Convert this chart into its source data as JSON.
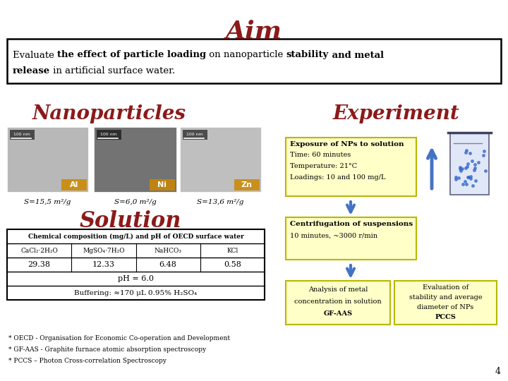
{
  "title": "Aim",
  "title_color": "#8B1A1A",
  "title_fontsize": 26,
  "aim_parts_line1": [
    [
      "Evaluate ",
      false
    ],
    [
      "the effect of particle loading",
      true
    ],
    [
      " on nanoparticle ",
      false
    ],
    [
      "stability",
      true
    ],
    [
      " and metal",
      true
    ]
  ],
  "aim_parts_line2": [
    [
      "release",
      true
    ],
    [
      " in artificial surface water.",
      false
    ]
  ],
  "nanoparticles_label": "Nanoparticles",
  "experiment_label": "Experiment",
  "section_label_color": "#8B1A1A",
  "section_label_fontsize": 20,
  "np_labels": [
    "Al",
    "Ni",
    "Zn"
  ],
  "np_sa": [
    "S=15,5 m²/g",
    "S=6,0 m²/g",
    "S=13,6 m²/g"
  ],
  "np_grays": [
    0.72,
    0.45,
    0.75
  ],
  "solution_label": "Solution",
  "solution_color": "#8B1A1A",
  "solution_fontsize": 22,
  "exposure_title": "Exposure of NPs to solution",
  "exposure_details": [
    "Time: 60 minutes",
    "Temperature: 21°C",
    "Loadings: 10 and 100 mg/L"
  ],
  "centrifugation_title": "Centrifugation of suspensions",
  "centrifugation_details": "10 minutes, ~3000 r/min",
  "table_title": "Chemical composition (mg/L) and pH of OECD surface water",
  "table_headers": [
    "CaCl₂·2H₂O",
    "MgSO₄·7H₂O",
    "NaHCO₃",
    "KCl"
  ],
  "table_values": [
    "29.38",
    "12.33",
    "6.48",
    "0.58"
  ],
  "table_ph": "pH = 6.0",
  "table_buffering": "Buffering: ≈170 μL 0.95% H₂SO₄",
  "analysis_box_text": [
    "Analysis of metal",
    "concentration in solution",
    "GF-AAS"
  ],
  "evaluation_box_text": [
    "Evaluation of",
    "stability and average",
    "diameter of NPs",
    "PCCS"
  ],
  "footnotes": [
    "* OECD - Organisation for Economic Co-operation and Development",
    "* GF-AAS - Graphite furnace atomic absorption spectroscopy",
    "* PCCS – Photon Cross-correlation Spectroscopy"
  ],
  "page_number": "4",
  "box_bg_yellow": "#FFFFC8",
  "box_border": "#B8B800",
  "arrow_color": "#4472C4",
  "bg_color": "#FFFFFF"
}
